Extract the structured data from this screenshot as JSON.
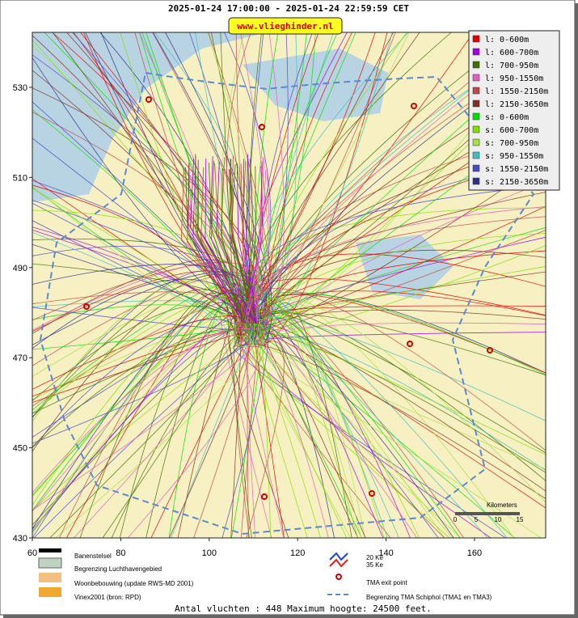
{
  "header": {
    "title": "2025-01-24 17:00:00 - 2025-01-24 22:59:59 CET",
    "url": "www.vlieghinder.nl"
  },
  "map": {
    "xlim": [
      60,
      176.1
    ],
    "ylim": [
      430,
      542.2
    ],
    "xticks": [
      60,
      80,
      100,
      120,
      140,
      160
    ],
    "yticks": [
      430,
      450,
      470,
      490,
      510,
      530
    ]
  },
  "legend": [
    {
      "label": "l: 0-600m",
      "color": "#e00000"
    },
    {
      "label": "l: 600-700m",
      "color": "#a000e0"
    },
    {
      "label": "l: 700-950m",
      "color": "#407000"
    },
    {
      "label": "l: 950-1550m",
      "color": "#e060c0"
    },
    {
      "label": "l: 1550-2150m",
      "color": "#c04848"
    },
    {
      "label": "l: 2150-3650m",
      "color": "#803020"
    },
    {
      "label": "s: 0-600m",
      "color": "#00e000"
    },
    {
      "label": "s: 600-700m",
      "color": "#80e000"
    },
    {
      "label": "s: 700-950m",
      "color": "#a8e040"
    },
    {
      "label": "s: 950-1550m",
      "color": "#40c0c0"
    },
    {
      "label": "s: 1550-2150m",
      "color": "#4848c8"
    },
    {
      "label": "s: 2150-3650m",
      "color": "#303088"
    }
  ],
  "scale": {
    "title": "Kilometers",
    "labels": [
      "0",
      "5",
      "10",
      "15"
    ]
  },
  "bottom_legend": {
    "runways": "Banenstelsel",
    "airport_boundary": "Begrenzing Luchthavengebied",
    "housing": "Woonbebouwing (update RWS-MD 2001)",
    "vinex": "Vinex2001 (bron: RPD)",
    "ke20": "20 Ke",
    "ke35": "35 Ke",
    "exit": "TMA exit point",
    "tma": "Begrenzing TMA Schiphol  (TMA1 en TMA3)"
  },
  "footer": "Antal vluchten : 448 Maximum hoogte: 24500 feet."
}
